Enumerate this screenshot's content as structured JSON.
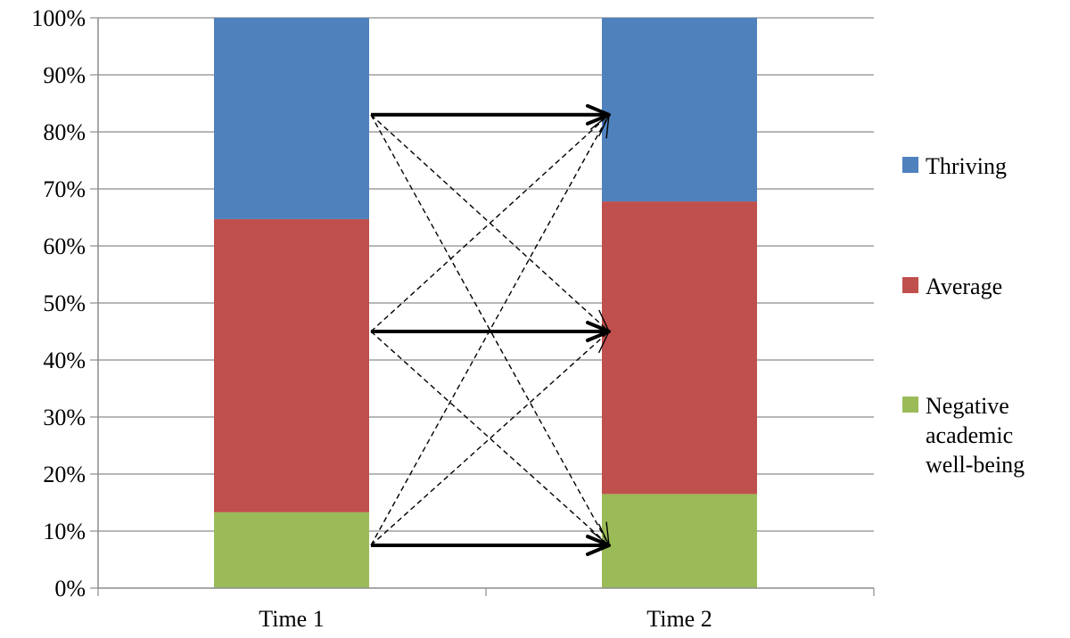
{
  "chart_data": {
    "type": "bar",
    "stacked": true,
    "percent_scale": true,
    "title": "",
    "xlabel": "",
    "ylabel": "",
    "categories": [
      "Time 1",
      "Time 2"
    ],
    "ylim": [
      0,
      100
    ],
    "yticks": [
      "0%",
      "10%",
      "20%",
      "30%",
      "40%",
      "50%",
      "60%",
      "70%",
      "80%",
      "90%",
      "100%"
    ],
    "grid": true,
    "legend": "right",
    "series": [
      {
        "name": "Negative academic well-being",
        "legend_lines": [
          "Negative",
          "academic",
          "well-being"
        ],
        "color": "#9BBB59",
        "values": [
          13.3,
          16.5
        ]
      },
      {
        "name": "Average",
        "legend_lines": [
          "Average"
        ],
        "color": "#C0504D",
        "values": [
          51.4,
          51.3
        ]
      },
      {
        "name": "Thriving",
        "legend_lines": [
          "Thriving"
        ],
        "color": "#4F81BD",
        "values": [
          35.3,
          32.2
        ]
      }
    ],
    "legend_order": [
      2,
      1,
      0
    ],
    "transition_arrows": {
      "from": "Time 1",
      "to": "Time 2",
      "stable_style": "solid-bold",
      "change_style": "dashed",
      "group_levels": [
        {
          "series": "Thriving",
          "value": 83
        },
        {
          "series": "Average",
          "value": 45
        },
        {
          "series": "Negative academic well-being",
          "value": 7.5
        }
      ]
    }
  }
}
